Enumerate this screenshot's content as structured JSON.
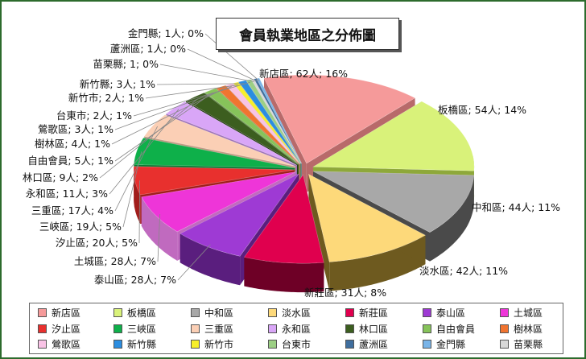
{
  "chart_data": {
    "type": "pie",
    "title": "會員執業地區之分佈圖",
    "slices": [
      {
        "name": "新店區",
        "count": 62,
        "unit": "人",
        "percent": 16,
        "label": "新店區; 62人; 16%",
        "color": "#f59a9a",
        "side": "#b86a6a"
      },
      {
        "name": "板橋區",
        "count": 54,
        "unit": "人",
        "percent": 14,
        "label": "板橋區; 54人; 14%",
        "color": "#d9f27a",
        "side": "#8ea83a"
      },
      {
        "name": "中和區",
        "count": 44,
        "unit": "人",
        "percent": 11,
        "label": "中和區; 44人; 11%",
        "color": "#a8a8a8",
        "side": "#4a4a4a"
      },
      {
        "name": "淡水區",
        "count": 42,
        "unit": "人",
        "percent": 11,
        "label": "淡水區; 42人; 11%",
        "color": "#fdd97a",
        "side": "#6e5a1f"
      },
      {
        "name": "新莊區",
        "count": 31,
        "unit": "人",
        "percent": 8,
        "label": "新莊區; 31人; 8%",
        "color": "#e0004e",
        "side": "#6e0026"
      },
      {
        "name": "泰山區",
        "count": 28,
        "unit": "人",
        "percent": 7,
        "label": "泰山區; 28人; 7%",
        "color": "#9e3ad4",
        "side": "#5a1e7e"
      },
      {
        "name": "土城區",
        "count": 28,
        "unit": "人",
        "percent": 7,
        "label": "土城區; 28人; 7%",
        "color": "#ee35d8",
        "side": "#c06abf"
      },
      {
        "name": "汐止區",
        "count": 20,
        "unit": "人",
        "percent": 5,
        "label": "汐止區; 20人; 5%",
        "color": "#e8302e",
        "side": "#a11d1b"
      },
      {
        "name": "三峽區",
        "count": 19,
        "unit": "人",
        "percent": 5,
        "label": "三峽區; 19人; 5%",
        "color": "#0eb04a",
        "side": "#0a7a33"
      },
      {
        "name": "三重區",
        "count": 17,
        "unit": "人",
        "percent": 4,
        "label": "三重區; 17人; 4%",
        "color": "#fbcfb5",
        "side": "#c09a82"
      },
      {
        "name": "永和區",
        "count": 11,
        "unit": "人",
        "percent": 3,
        "label": "永和區; 11人; 3%",
        "color": "#d9a6f7",
        "side": "#9d72b8"
      },
      {
        "name": "林口區",
        "count": 9,
        "unit": "人",
        "percent": 2,
        "label": "林口區; 9人; 2%",
        "color": "#3c5e1f",
        "side": "#233812"
      },
      {
        "name": "自由會員",
        "count": 5,
        "unit": "人",
        "percent": 1,
        "label": "自由會員; 5人; 1%",
        "color": "#86c35a",
        "side": "#5a8a3a"
      },
      {
        "name": "樹林區",
        "count": 4,
        "unit": "人",
        "percent": 1,
        "label": "樹林區; 4人; 1%",
        "color": "#f07430",
        "side": "#a8501e"
      },
      {
        "name": "鶯歌區",
        "count": 3,
        "unit": "人",
        "percent": 1,
        "label": "鶯歌區; 3人; 1%",
        "color": "#f9c3e6",
        "side": "#c08ab0"
      },
      {
        "name": "新竹市",
        "count": 2,
        "unit": "人",
        "percent": 1,
        "label": "新竹市; 2人; 1%",
        "color": "#f7ef2a",
        "side": "#a8a01a"
      },
      {
        "name": "新竹縣",
        "count": 3,
        "unit": "人",
        "percent": 1,
        "label": "新竹縣; 3人; 1%",
        "color": "#2b8de0",
        "side": "#1c5e96"
      },
      {
        "name": "台東市",
        "count": 2,
        "unit": "人",
        "percent": 1,
        "label": "台東市; 2人; 1%",
        "color": "#9ccf84",
        "side": "#6a9a55"
      },
      {
        "name": "苗栗縣",
        "count": 1,
        "unit": "人",
        "percent": 0,
        "label": "苗栗縣; 1; 0%",
        "color": "#d8d8d8",
        "side": "#9a9a9a"
      },
      {
        "name": "蘆洲區",
        "count": 1,
        "unit": "人",
        "percent": 0,
        "label": "蘆洲區; 1人; 0%",
        "color": "#3f6e9e",
        "side": "#2a4a6a"
      },
      {
        "name": "金門縣",
        "count": 1,
        "unit": "人",
        "percent": 0,
        "label": "金門縣; 1人; 0%",
        "color": "#79b4e8",
        "side": "#4c80ab"
      }
    ],
    "legend": {
      "placement": "bottom",
      "rows": [
        [
          "新店區",
          "板橋區",
          "中和區",
          "淡水區",
          "新莊區",
          "泰山區",
          "土城區"
        ],
        [
          "汐止區",
          "三峽區",
          "三重區",
          "永和區",
          "林口區",
          "自由會員",
          "樹林區"
        ],
        [
          "鶯歌區",
          "新竹縣",
          "新竹市",
          "台東市",
          "蘆洲區",
          "金門縣",
          "苗栗縣"
        ]
      ]
    },
    "style": "3d-exploded-pie"
  }
}
